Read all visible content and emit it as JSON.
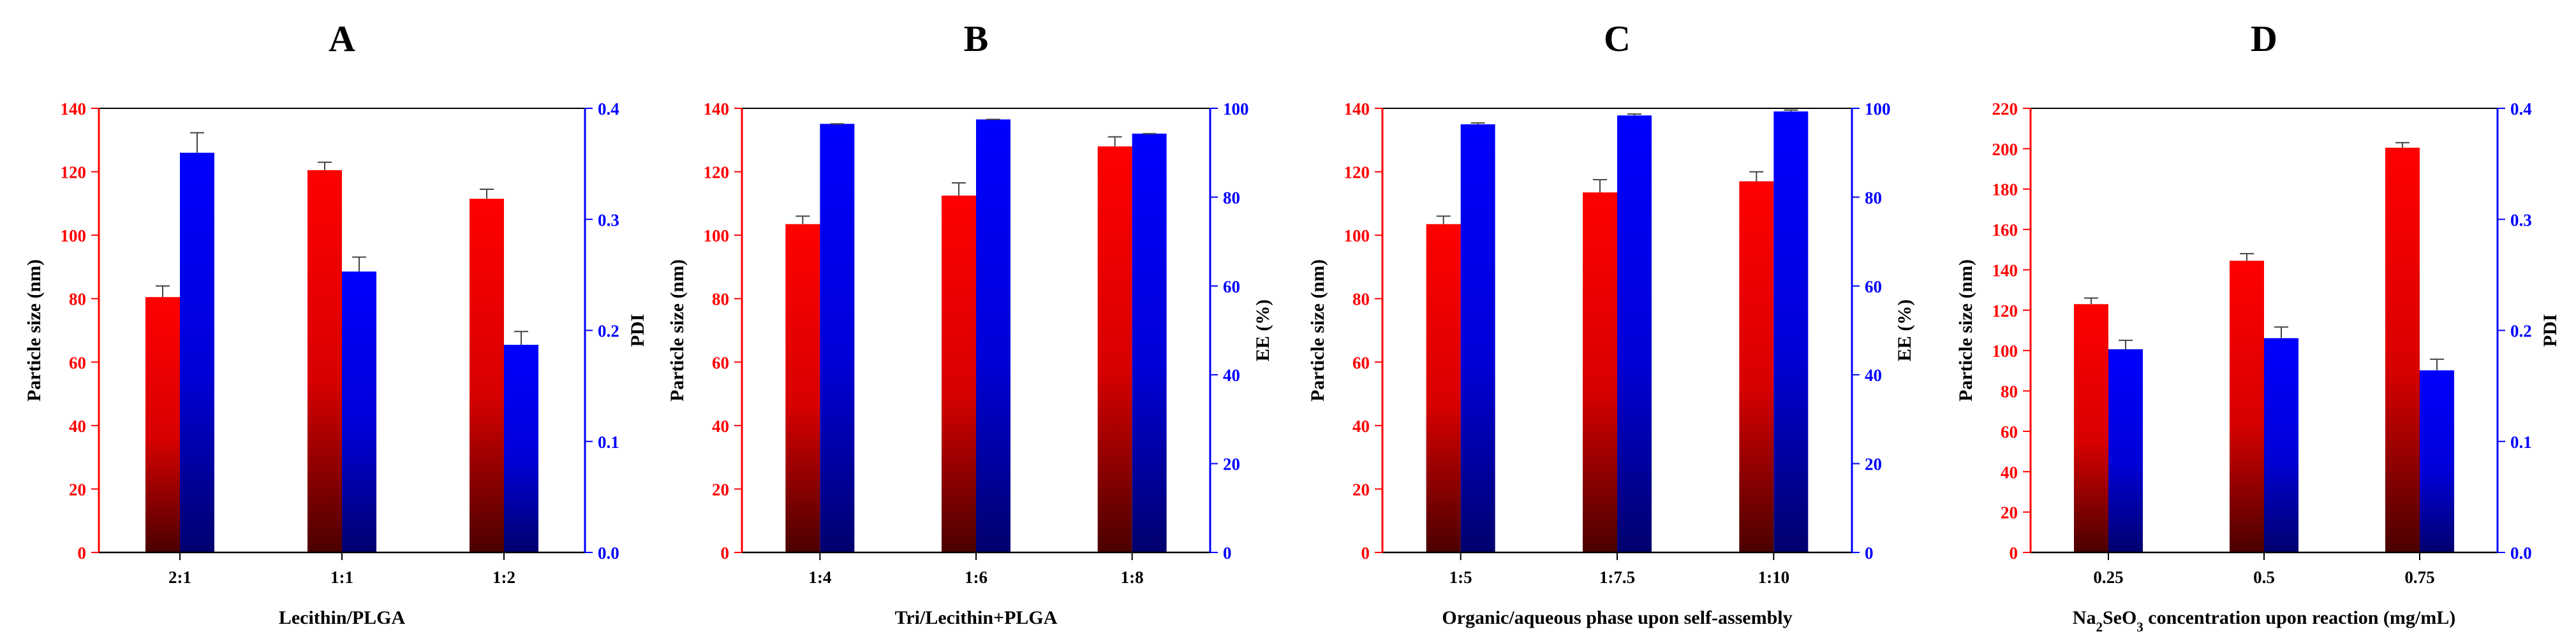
{
  "colors": {
    "left_axis": "#ff0000",
    "right_axis": "#0000ff",
    "bar_left_top": "#ff0000",
    "bar_left_bottom": "#4a0000",
    "bar_right_top": "#0000ff",
    "bar_right_bottom": "#00006e"
  },
  "chart_data": [
    {
      "type": "bar",
      "panel": "A",
      "xlabel": "Lecithin/PLGA",
      "ylabel": "Particle size (nm)",
      "y2label": "PDI",
      "categories": [
        "2:1",
        "1:1",
        "1:2"
      ],
      "ylim": [
        0,
        140
      ],
      "yticks": [
        0,
        20,
        40,
        60,
        80,
        100,
        120,
        140
      ],
      "y2lim": [
        0,
        0.4
      ],
      "y2ticks": [
        "0.0",
        "0.1",
        "0.2",
        "0.3",
        "0.4"
      ],
      "series": [
        {
          "axis": "left",
          "values": [
            80.5,
            120.5,
            111.5
          ],
          "errors": [
            3.5,
            2.5,
            3.0
          ]
        },
        {
          "axis": "right",
          "values": [
            0.36,
            0.253,
            0.187
          ],
          "errors": [
            0.018,
            0.013,
            0.012
          ]
        }
      ]
    },
    {
      "type": "bar",
      "panel": "B",
      "xlabel": "Tri/Lecithin+PLGA",
      "ylabel": "Particle size (nm)",
      "y2label": "EE (%)",
      "categories": [
        "1:4",
        "1:6",
        "1:8"
      ],
      "ylim": [
        0,
        140
      ],
      "yticks": [
        0,
        20,
        40,
        60,
        80,
        100,
        120,
        140
      ],
      "y2lim": [
        0,
        100
      ],
      "y2ticks": [
        "0",
        "20",
        "40",
        "60",
        "80",
        "100"
      ],
      "series": [
        {
          "axis": "left",
          "values": [
            103.5,
            112.5,
            128.0
          ],
          "errors": [
            2.5,
            4.0,
            3.0
          ]
        },
        {
          "axis": "right",
          "values": [
            96.5,
            97.5,
            94.3
          ],
          "errors": [
            0,
            0,
            0
          ]
        }
      ]
    },
    {
      "type": "bar",
      "panel": "C",
      "xlabel": "Organic/aqueous phase upon self-assembly",
      "ylabel": "Particle size (nm)",
      "y2label": "EE (%)",
      "categories": [
        "1:5",
        "1:7.5",
        "1:10"
      ],
      "ylim": [
        0,
        140
      ],
      "yticks": [
        0,
        20,
        40,
        60,
        80,
        100,
        120,
        140
      ],
      "y2lim": [
        0,
        100
      ],
      "y2ticks": [
        "0",
        "20",
        "40",
        "60",
        "80",
        "100"
      ],
      "series": [
        {
          "axis": "left",
          "values": [
            103.5,
            113.5,
            117.0
          ],
          "errors": [
            2.5,
            4.0,
            3.0
          ]
        },
        {
          "axis": "right",
          "values": [
            96.4,
            98.4,
            99.3
          ],
          "errors": [
            0.3,
            0.3,
            0.3
          ]
        }
      ]
    },
    {
      "type": "bar",
      "panel": "D",
      "xlabel_parts": [
        "Na",
        "2",
        "SeO",
        "3",
        " concentration upon reaction (mg/mL)"
      ],
      "ylabel": "Particle size (nm)",
      "y2label": "PDI",
      "categories": [
        "0.25",
        "0.5",
        "0.75"
      ],
      "ylim": [
        0,
        220
      ],
      "yticks": [
        0,
        20,
        40,
        60,
        80,
        100,
        120,
        140,
        160,
        180,
        200,
        220
      ],
      "y2lim": [
        0,
        0.4
      ],
      "y2ticks": [
        "0.0",
        "0.1",
        "0.2",
        "0.3",
        "0.4"
      ],
      "series": [
        {
          "axis": "left",
          "values": [
            123.0,
            144.5,
            200.5
          ],
          "errors": [
            3.0,
            3.5,
            2.5
          ]
        },
        {
          "axis": "right",
          "values": [
            0.183,
            0.193,
            0.164
          ],
          "errors": [
            0.008,
            0.01,
            0.01
          ]
        }
      ]
    }
  ]
}
